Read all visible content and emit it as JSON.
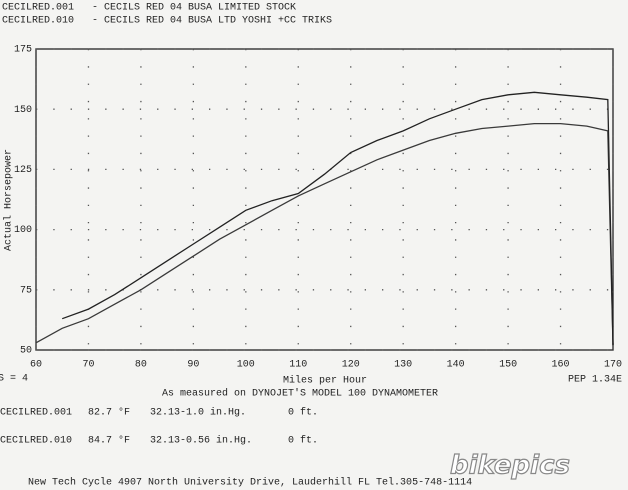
{
  "chart_data": {
    "type": "line",
    "x_label": "Miles per Hour",
    "y_label": "Actual Horsepower",
    "caption": "As measured on DYNOJET'S MODEL 100 DYNAMOMETER",
    "smoothing": "S = 4",
    "pep": "PEP 1.34E",
    "footer": "New Tech Cycle 4907 North University Drive, Lauderhill FL Tel.305-748-1114",
    "watermark": "bikepics",
    "x": [
      60,
      65,
      70,
      75,
      80,
      85,
      90,
      95,
      100,
      105,
      110,
      115,
      120,
      125,
      130,
      135,
      140,
      145,
      150,
      155,
      160,
      165,
      169,
      170
    ],
    "series": [
      {
        "name": "CECILRED.001",
        "description": "- CECILS RED 04 BUSA LIMITED STOCK",
        "color": "#3a3a3a",
        "conditions": [
          "82.7 °F",
          "32.13-1.0 in.Hg.",
          "0 ft."
        ],
        "values": [
          53,
          59,
          63,
          69,
          75,
          82,
          89,
          96,
          102,
          108,
          114,
          119,
          124,
          129,
          133,
          137,
          140,
          142,
          143,
          144,
          144,
          143,
          141,
          52
        ]
      },
      {
        "name": "CECILRED.010",
        "description": "- CECILS RED 04 BUSA LTD YOSHI +CC TRIKS",
        "color": "#222222",
        "conditions": [
          "84.7 °F",
          "32.13-0.56 in.Hg.",
          "0 ft."
        ],
        "values": [
          null,
          63,
          67,
          73,
          80,
          87,
          94,
          101,
          108,
          112,
          115,
          123,
          132,
          137,
          141,
          146,
          150,
          154,
          156,
          157,
          156,
          155,
          154,
          52
        ]
      }
    ],
    "xlim": [
      60,
      170
    ],
    "ylim": [
      50,
      175
    ],
    "xticks": [
      60,
      70,
      80,
      90,
      100,
      110,
      120,
      130,
      140,
      150,
      160,
      170
    ],
    "yticks": [
      50,
      75,
      100,
      125,
      150,
      175
    ],
    "grid": true
  }
}
